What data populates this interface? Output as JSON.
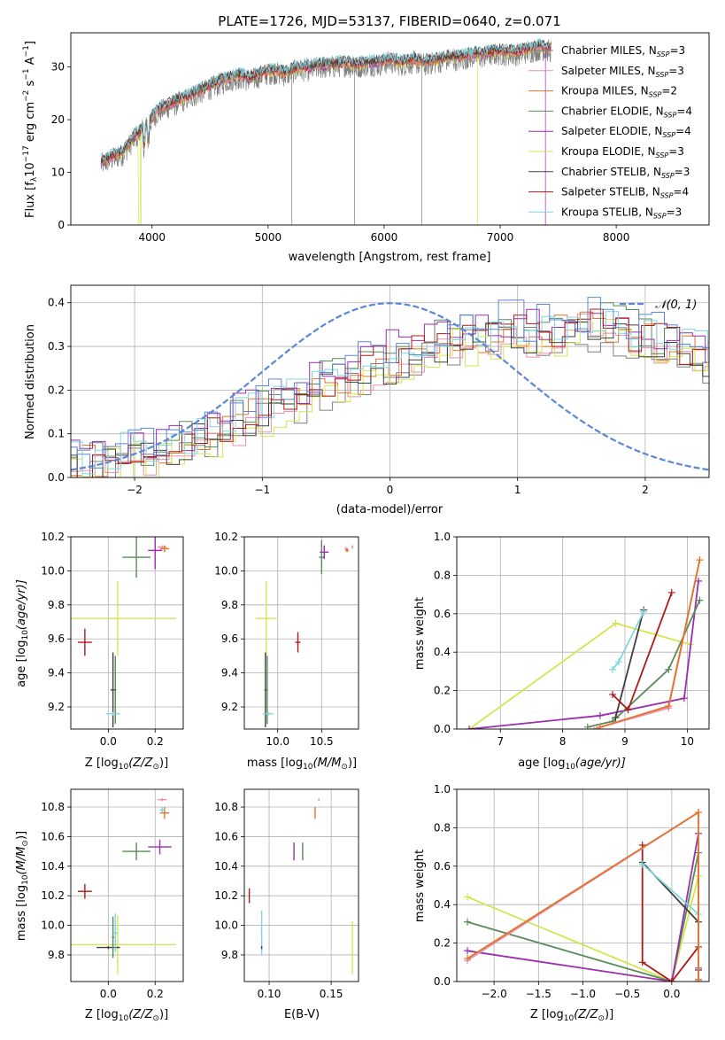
{
  "palette": {
    "chab_miles": "#7f7f7f",
    "salp_miles": "#e98fb0",
    "krou_miles": "#e0752a",
    "chab_elodie": "#5a8a5a",
    "salp_elodie": "#9b2fae",
    "krou_elodie": "#d4e64f",
    "chab_stelib": "#404040",
    "salp_stelib": "#b01818",
    "krou_stelib": "#7fd6e0",
    "normal": "#5b87d6"
  },
  "chart_data": [
    {
      "id": "spectrum",
      "type": "line",
      "title": "PLATE=1726, MJD=53137, FIBERID=0640, z=0.071",
      "xlabel": "wavelength [Angstrom, rest frame]",
      "ylabel_main": "Flux [f",
      "ylabel_sub": "λ",
      "ylabel_rest": "10",
      "ylabel_exp": "−17",
      "ylabel_unit": " erg cm",
      "ylabel_unit_exp": "−2",
      "ylabel_s": " s",
      "ylabel_s_exp": "−1",
      "ylabel_a": " A",
      "ylabel_a_exp": "−1",
      "ylabel_end": "]",
      "xlim": [
        3300,
        8800
      ],
      "ylim": [
        0,
        36.5
      ],
      "xticks": [
        4000,
        5000,
        6000,
        7000,
        8000
      ],
      "yticks": [
        0,
        10,
        20,
        30
      ],
      "continuum": [
        [
          3550,
          12
        ],
        [
          3650,
          13
        ],
        [
          3750,
          14
        ],
        [
          3850,
          17
        ],
        [
          3950,
          19
        ],
        [
          4050,
          22
        ],
        [
          4150,
          23
        ],
        [
          4250,
          24
        ],
        [
          4350,
          25
        ],
        [
          4450,
          26
        ],
        [
          4550,
          27
        ],
        [
          4650,
          28
        ],
        [
          4750,
          28.5
        ],
        [
          4850,
          28
        ],
        [
          4950,
          29
        ],
        [
          5050,
          29.5
        ],
        [
          5150,
          29
        ],
        [
          5250,
          30
        ],
        [
          5350,
          30
        ],
        [
          5450,
          30.5
        ],
        [
          5550,
          30.5
        ],
        [
          5650,
          31
        ],
        [
          5750,
          30.5
        ],
        [
          5850,
          31
        ],
        [
          5950,
          31
        ],
        [
          6050,
          31.5
        ],
        [
          6150,
          31
        ],
        [
          6250,
          31.5
        ],
        [
          6350,
          31
        ],
        [
          6450,
          31.5
        ],
        [
          6550,
          32
        ],
        [
          6650,
          32
        ],
        [
          6750,
          32.5
        ],
        [
          6850,
          32.5
        ],
        [
          6950,
          33
        ],
        [
          7050,
          33
        ],
        [
          7150,
          33
        ],
        [
          7250,
          33.5
        ],
        [
          7350,
          34
        ],
        [
          7450,
          33.5
        ]
      ],
      "legend": [
        {
          "pre": "Chabrier MILES, N",
          "sub": "SSP",
          "post": "=3",
          "key": "chab_miles"
        },
        {
          "pre": "Salpeter MILES, N",
          "sub": "SSP",
          "post": "=3",
          "key": "salp_miles"
        },
        {
          "pre": "Kroupa MILES, N",
          "sub": "SSP",
          "post": "=2",
          "key": "krou_miles"
        },
        {
          "pre": "Chabrier ELODIE, N",
          "sub": "SSP",
          "post": "=4",
          "key": "chab_elodie"
        },
        {
          "pre": "Salpeter ELODIE, N",
          "sub": "SSP",
          "post": "=4",
          "key": "salp_elodie"
        },
        {
          "pre": "Kroupa ELODIE, N",
          "sub": "SSP",
          "post": "=3",
          "key": "krou_elodie"
        },
        {
          "pre": "Chabrier STELIB, N",
          "sub": "SSP",
          "post": "=3",
          "key": "chab_stelib"
        },
        {
          "pre": "Salpeter STELIB, N",
          "sub": "SSP",
          "post": "=4",
          "key": "salp_stelib"
        },
        {
          "pre": "Kroupa STELIB, N",
          "sub": "SSP",
          "post": "=3",
          "key": "krou_stelib"
        }
      ]
    },
    {
      "id": "residuals",
      "type": "step",
      "xlabel": "(data-model)/error",
      "ylabel": "Normed distribution",
      "xlim": [
        -2.5,
        2.5
      ],
      "ylim": [
        0,
        0.44
      ],
      "xticks": [
        -2,
        -1,
        0,
        1,
        2
      ],
      "xtick_labels": [
        "−2",
        "−1",
        "0",
        "1",
        "2"
      ],
      "yticks": [
        0,
        0.1,
        0.2,
        0.3,
        0.4
      ],
      "ytick_labels": [
        "0.0",
        "0.1",
        "0.2",
        "0.3",
        "0.4"
      ],
      "legend_label": "𝒩(0, 1)",
      "normal": {
        "mean": 0,
        "sigma": 1
      },
      "bin_width": 0.1,
      "shape_values": [
        0.03,
        0.03,
        0.04,
        0.05,
        0.05,
        0.06,
        0.06,
        0.07,
        0.08,
        0.08,
        0.09,
        0.1,
        0.12,
        0.13,
        0.14,
        0.15,
        0.17,
        0.18,
        0.19,
        0.21,
        0.22,
        0.23,
        0.24,
        0.25,
        0.26,
        0.27,
        0.28,
        0.29,
        0.3,
        0.31,
        0.32,
        0.32,
        0.33,
        0.33,
        0.34,
        0.34,
        0.33,
        0.33,
        0.34,
        0.35,
        0.35,
        0.35,
        0.35,
        0.34,
        0.33,
        0.32,
        0.31,
        0.3,
        0.29,
        0.28,
        0.27,
        0.25,
        0.23,
        0.22,
        0.2,
        0.18,
        0.16,
        0.15,
        0.14,
        0.13,
        0.12
      ]
    },
    {
      "id": "age_vs_z",
      "type": "errorbar",
      "xlabel_pre": "Z [log",
      "xlabel_sub": "10",
      "xlabel_post": "(Z/Z",
      "xlabel_sub2": "⊙",
      "xlabel_end": ")]",
      "ylabel_pre": "age  [log",
      "ylabel_sub": "10",
      "ylabel_post": "(age/yr)]",
      "xlim": [
        -0.16,
        0.32
      ],
      "ylim": [
        9.07,
        10.2
      ],
      "xticks": [
        0.0,
        0.2
      ],
      "xtick_labels": [
        "0.0",
        "0.2"
      ],
      "yticks": [
        9.2,
        9.4,
        9.6,
        9.8,
        10.0,
        10.2
      ],
      "ytick_labels": [
        "9.2",
        "9.4",
        "9.6",
        "9.8",
        "10.0",
        "10.2"
      ],
      "points": [
        {
          "key": "krou_elodie",
          "x": 0.04,
          "y": 9.72,
          "ex": 0.25,
          "ey": 0.22
        },
        {
          "key": "salp_stelib",
          "x": -0.1,
          "y": 9.58,
          "ex": 0.03,
          "ey": 0.08
        },
        {
          "key": "chab_elodie",
          "x": 0.12,
          "y": 10.08,
          "ex": 0.06,
          "ey": 0.12
        },
        {
          "key": "salp_elodie",
          "x": 0.2,
          "y": 10.12,
          "ex": 0.03,
          "ey": 0.11
        },
        {
          "key": "salp_miles",
          "x": 0.23,
          "y": 10.14,
          "ex": 0.02,
          "ey": 0.01
        },
        {
          "key": "krou_miles",
          "x": 0.24,
          "y": 10.13,
          "ex": 0.02,
          "ey": 0.02
        },
        {
          "key": "chab_stelib",
          "x": 0.02,
          "y": 9.3,
          "ex": 0.01,
          "ey": 0.22
        },
        {
          "key": "chab_elodie",
          "x": 0.03,
          "y": 9.3,
          "ex": 0.005,
          "ey": 0.2
        },
        {
          "key": "krou_stelib",
          "x": 0.02,
          "y": 9.16,
          "ex": 0.03,
          "ey": 0.01
        }
      ]
    },
    {
      "id": "age_vs_mass",
      "type": "errorbar",
      "xlabel_pre": "mass [log",
      "xlabel_sub": "10",
      "xlabel_post": "(M/M",
      "xlabel_sub2": "⊙",
      "xlabel_end": ")]",
      "xlim": [
        9.62,
        10.92
      ],
      "ylim": [
        9.07,
        10.2
      ],
      "xticks": [
        10.0,
        10.5
      ],
      "xtick_labels": [
        "10.0",
        "10.5"
      ],
      "yticks": [
        9.2,
        9.4,
        9.6,
        9.8,
        10.0,
        10.2
      ],
      "ytick_labels": [
        "9.2",
        "9.4",
        "9.6",
        "9.8",
        "10.0",
        "10.2"
      ],
      "points": [
        {
          "key": "krou_elodie",
          "x": 9.87,
          "y": 9.72,
          "ex": 0.12,
          "ey": 0.22
        },
        {
          "key": "salp_stelib",
          "x": 10.23,
          "y": 9.58,
          "ex": 0.03,
          "ey": 0.06
        },
        {
          "key": "chab_elodie",
          "x": 10.5,
          "y": 10.08,
          "ex": 0.03,
          "ey": 0.1
        },
        {
          "key": "salp_elodie",
          "x": 10.53,
          "y": 10.11,
          "ex": 0.05,
          "ey": 0.04
        },
        {
          "key": "salp_miles",
          "x": 10.78,
          "y": 10.13,
          "ex": 0.02,
          "ey": 0.01
        },
        {
          "key": "krou_miles",
          "x": 10.79,
          "y": 10.12,
          "ex": 0.02,
          "ey": 0.01
        },
        {
          "key": "salp_miles",
          "x": 10.85,
          "y": 10.14,
          "ex": 0.01,
          "ey": 0.01
        },
        {
          "key": "chab_stelib",
          "x": 9.86,
          "y": 9.3,
          "ex": 0.01,
          "ey": 0.22
        },
        {
          "key": "chab_elodie",
          "x": 9.88,
          "y": 9.3,
          "ex": 0.01,
          "ey": 0.2
        },
        {
          "key": "krou_stelib",
          "x": 9.89,
          "y": 9.16,
          "ex": 0.06,
          "ey": 0.01
        }
      ]
    },
    {
      "id": "weight_vs_age",
      "type": "line",
      "xlabel_pre": "age  [log",
      "xlabel_sub": "10",
      "xlabel_post": "(age/yr)]",
      "ylabel": "mass weight",
      "xlim": [
        6.3,
        10.35
      ],
      "ylim": [
        0,
        1.0
      ],
      "xticks": [
        7,
        8,
        9,
        10
      ],
      "xtick_labels": [
        "7",
        "8",
        "9",
        "10"
      ],
      "yticks": [
        0,
        0.2,
        0.4,
        0.6,
        0.8,
        1.0
      ],
      "ytick_labels": [
        "0.0",
        "0.2",
        "0.4",
        "0.6",
        "0.8",
        "1.0"
      ],
      "series": [
        {
          "key": "krou_elodie",
          "x": [
            6.5,
            8.85,
            10.05
          ],
          "y": [
            0.0,
            0.55,
            0.44
          ]
        },
        {
          "key": "salp_elodie",
          "x": [
            6.5,
            8.6,
            9.95,
            10.18
          ],
          "y": [
            0.0,
            0.07,
            0.16,
            0.77
          ]
        },
        {
          "key": "chab_elodie",
          "x": [
            8.4,
            8.8,
            9.7,
            10.2
          ],
          "y": [
            0.01,
            0.04,
            0.31,
            0.67
          ]
        },
        {
          "key": "chab_stelib",
          "x": [
            8.85,
            9.3
          ],
          "y": [
            0.06,
            0.62
          ]
        },
        {
          "key": "krou_stelib",
          "x": [
            8.8,
            8.9,
            9.3
          ],
          "y": [
            0.31,
            0.35,
            0.61
          ]
        },
        {
          "key": "salp_stelib",
          "x": [
            8.8,
            9.05,
            9.75
          ],
          "y": [
            0.18,
            0.1,
            0.71
          ]
        },
        {
          "key": "salp_miles",
          "x": [
            8.5,
            9.7,
            10.2
          ],
          "y": [
            0.0,
            0.11,
            0.88
          ]
        },
        {
          "key": "krou_miles",
          "x": [
            8.6,
            9.7,
            10.2
          ],
          "y": [
            0.01,
            0.12,
            0.88
          ]
        }
      ]
    },
    {
      "id": "mass_vs_z",
      "type": "errorbar",
      "xlabel_pre": "Z [log",
      "xlabel_sub": "10",
      "xlabel_post": "(Z/Z",
      "xlabel_sub2": "⊙",
      "xlabel_end": ")]",
      "ylabel_pre": "mass [log",
      "ylabel_sub": "10",
      "ylabel_post": "(M/M",
      "ylabel_sub2": "⊙",
      "ylabel_end": ")]",
      "xlim": [
        -0.16,
        0.32
      ],
      "ylim": [
        9.62,
        10.92
      ],
      "xticks": [
        0.0,
        0.2
      ],
      "xtick_labels": [
        "0.0",
        "0.2"
      ],
      "yticks": [
        9.8,
        10.0,
        10.2,
        10.4,
        10.6,
        10.8
      ],
      "ytick_labels": [
        "9.8",
        "10.0",
        "10.2",
        "10.4",
        "10.6",
        "10.8"
      ],
      "points": [
        {
          "key": "krou_elodie",
          "x": 0.04,
          "y": 9.87,
          "ex": 0.25,
          "ey": 0.2
        },
        {
          "key": "salp_stelib",
          "x": -0.1,
          "y": 10.23,
          "ex": 0.03,
          "ey": 0.05
        },
        {
          "key": "chab_elodie",
          "x": 0.12,
          "y": 10.5,
          "ex": 0.06,
          "ey": 0.06
        },
        {
          "key": "salp_elodie",
          "x": 0.22,
          "y": 10.53,
          "ex": 0.05,
          "ey": 0.05
        },
        {
          "key": "salp_miles",
          "x": 0.23,
          "y": 10.85,
          "ex": 0.02,
          "ey": 0.01
        },
        {
          "key": "krou_miles",
          "x": 0.24,
          "y": 10.76,
          "ex": 0.02,
          "ey": 0.04
        },
        {
          "key": "krou_stelib",
          "x": 0.23,
          "y": 10.78,
          "ex": 0.01,
          "ey": 0.02
        },
        {
          "key": "chab_stelib",
          "x": 0.0,
          "y": 9.85,
          "ex": 0.05,
          "ey": 0.01
        },
        {
          "key": "chab_elodie",
          "x": 0.02,
          "y": 9.92,
          "ex": 0.005,
          "ey": 0.14
        },
        {
          "key": "krou_stelib",
          "x": 0.03,
          "y": 9.95,
          "ex": 0.01,
          "ey": 0.13
        }
      ]
    },
    {
      "id": "mass_vs_ebv",
      "type": "errorbar",
      "xlabel": "E(B-V)",
      "xlim": [
        0.08,
        0.172
      ],
      "ylim": [
        9.62,
        10.92
      ],
      "xticks": [
        0.1,
        0.15
      ],
      "xtick_labels": [
        "0.10",
        "0.15"
      ],
      "yticks": [
        9.8,
        10.0,
        10.2,
        10.4,
        10.6,
        10.8
      ],
      "ytick_labels": [
        "9.8",
        "10.0",
        "10.2",
        "10.4",
        "10.6",
        "10.8"
      ],
      "points": [
        {
          "key": "salp_stelib",
          "x": 0.084,
          "y": 10.2,
          "ex": 0.0,
          "ey": 0.05
        },
        {
          "key": "krou_stelib",
          "x": 0.094,
          "y": 9.95,
          "ex": 0.0,
          "ey": 0.15
        },
        {
          "key": "chab_stelib",
          "x": 0.094,
          "y": 9.85,
          "ex": 0.0,
          "ey": 0.01
        },
        {
          "key": "salp_elodie",
          "x": 0.12,
          "y": 10.5,
          "ex": 0.0,
          "ey": 0.06
        },
        {
          "key": "chab_elodie",
          "x": 0.127,
          "y": 10.5,
          "ex": 0.0,
          "ey": 0.06
        },
        {
          "key": "krou_miles",
          "x": 0.137,
          "y": 10.76,
          "ex": 0.0,
          "ey": 0.04
        },
        {
          "key": "salp_miles",
          "x": 0.14,
          "y": 10.85,
          "ex": 0.0,
          "ey": 0.01
        },
        {
          "key": "krou_elodie",
          "x": 0.167,
          "y": 9.85,
          "ex": 0.0,
          "ey": 0.18
        }
      ]
    },
    {
      "id": "weight_vs_z",
      "type": "line",
      "xlabel_pre": "Z [log",
      "xlabel_sub": "10",
      "xlabel_post": "(Z/Z",
      "xlabel_sub2": "⊙",
      "xlabel_end": ")]",
      "ylabel": "mass weight",
      "xlim": [
        -2.42,
        0.42
      ],
      "ylim": [
        0,
        1.0
      ],
      "xticks": [
        -2.0,
        -1.5,
        -1.0,
        -0.5,
        0.0
      ],
      "xtick_labels": [
        "−2.0",
        "−1.5",
        "−1.0",
        "−0.5",
        "0.0"
      ],
      "yticks": [
        0,
        0.2,
        0.4,
        0.6,
        0.8,
        1.0
      ],
      "ytick_labels": [
        "0.0",
        "0.2",
        "0.4",
        "0.6",
        "0.8",
        "1.0"
      ],
      "series": [
        {
          "key": "krou_elodie",
          "x": [
            -2.3,
            0.0,
            0.3,
            0.3
          ],
          "y": [
            0.44,
            0.0,
            0.55,
            0.0
          ]
        },
        {
          "key": "chab_elodie",
          "x": [
            -2.3,
            0.0,
            0.3,
            0.3
          ],
          "y": [
            0.31,
            0.0,
            0.67,
            0.01
          ]
        },
        {
          "key": "salp_elodie",
          "x": [
            -2.3,
            0.0,
            0.3,
            0.3
          ],
          "y": [
            0.16,
            0.0,
            0.77,
            0.07
          ]
        },
        {
          "key": "salp_stelib",
          "x": [
            -0.33,
            -0.33,
            0.0,
            0.3,
            0.3
          ],
          "y": [
            0.71,
            0.1,
            0.0,
            0.18,
            0.0
          ]
        },
        {
          "key": "chab_stelib",
          "x": [
            -0.33,
            0.3,
            0.3
          ],
          "y": [
            0.62,
            0.31,
            0.06
          ]
        },
        {
          "key": "krou_stelib",
          "x": [
            -0.33,
            0.3,
            0.3
          ],
          "y": [
            0.61,
            0.35,
            0.0
          ]
        },
        {
          "key": "salp_miles",
          "x": [
            -2.3,
            0.3,
            0.3
          ],
          "y": [
            0.11,
            0.88,
            0.0
          ]
        },
        {
          "key": "krou_miles",
          "x": [
            -2.3,
            0.3,
            0.3
          ],
          "y": [
            0.12,
            0.88,
            0.01
          ]
        }
      ]
    }
  ]
}
